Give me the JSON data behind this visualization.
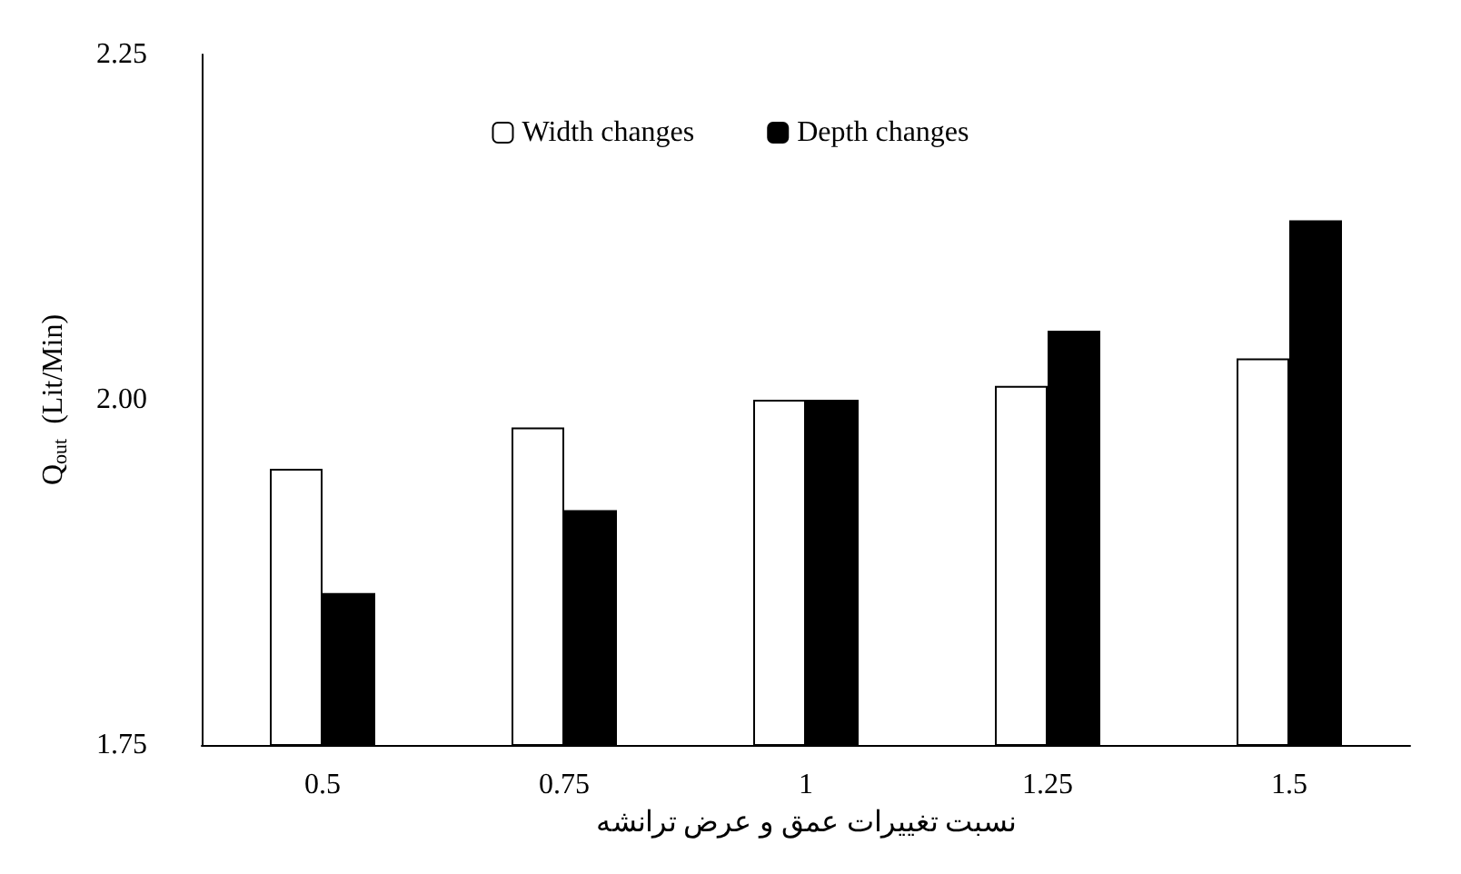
{
  "chart_data": {
    "type": "bar",
    "xlabel": "نسبت تغییرات عمق و عرض ترانشه",
    "ylabel": "Q$_{out}$  (Lit/Min)",
    "categories": [
      "0.5",
      "0.75",
      "1",
      "1.25",
      "1.5"
    ],
    "series": [
      {
        "name": "Width changes",
        "color": "#ffffff",
        "values": [
          1.95,
          1.98,
          2.0,
          2.01,
          2.03
        ]
      },
      {
        "name": "Depth changes",
        "color": "#000000",
        "values": [
          1.86,
          1.92,
          2.0,
          2.05,
          2.13
        ]
      }
    ],
    "ylim": [
      1.75,
      2.25
    ],
    "yticks": [
      1.75,
      {
        "value": 2.0,
        "label": "2.00"
      },
      2.25
    ],
    "grid": false,
    "legend": "top"
  }
}
